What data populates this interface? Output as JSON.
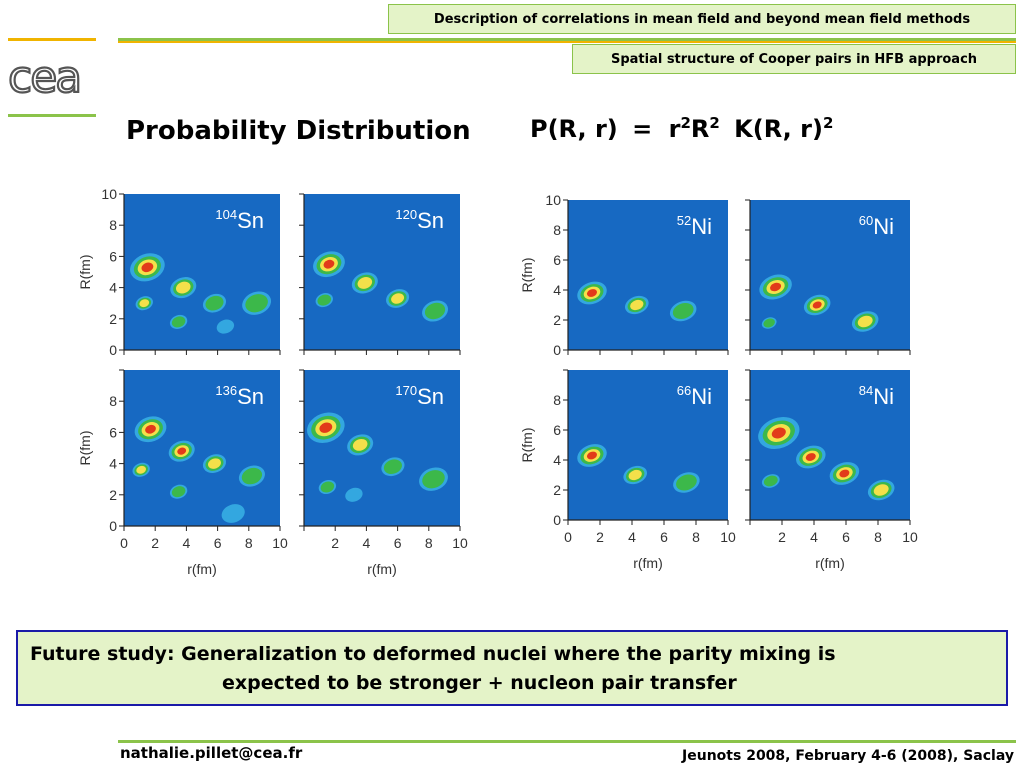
{
  "header": {
    "top_title": "Description of correlations in mean field and beyond mean field methods",
    "subtitle": "Spatial structure of Cooper pairs in HFB approach"
  },
  "logo": {
    "text": "cea"
  },
  "slide": {
    "title": "Probability Distribution",
    "formula_lhs": "P(R, r)",
    "formula_eq": "=",
    "formula_r": "r",
    "formula_R": "R",
    "formula_exp": "2",
    "formula_K": "K(R, r)"
  },
  "figure": {
    "xlabel": "r(fm)",
    "ylabel": "R(fm)",
    "ticks": [
      "0",
      "2",
      "4",
      "6",
      "8",
      "10"
    ],
    "panels": [
      {
        "mass": "104",
        "element": "Sn"
      },
      {
        "mass": "120",
        "element": "Sn"
      },
      {
        "mass": "136",
        "element": "Sn"
      },
      {
        "mass": "170",
        "element": "Sn"
      },
      {
        "mass": "52",
        "element": "Ni"
      },
      {
        "mass": "60",
        "element": "Ni"
      },
      {
        "mass": "66",
        "element": "Ni"
      },
      {
        "mass": "84",
        "element": "Ni"
      }
    ],
    "colors": {
      "background": "#1769c2",
      "low": "#33a7e0",
      "mid": "#3cb84a",
      "high": "#f4e04a",
      "peak": "#e23a1a"
    }
  },
  "note": {
    "line1": "Future study: Generalization to deformed nuclei where the parity mixing is",
    "line2": "expected to be stronger + nucleon pair transfer"
  },
  "footer": {
    "email": "nathalie.pillet@cea.fr",
    "conference": "Jeunots 2008, February 4-6 (2008), Saclay"
  }
}
